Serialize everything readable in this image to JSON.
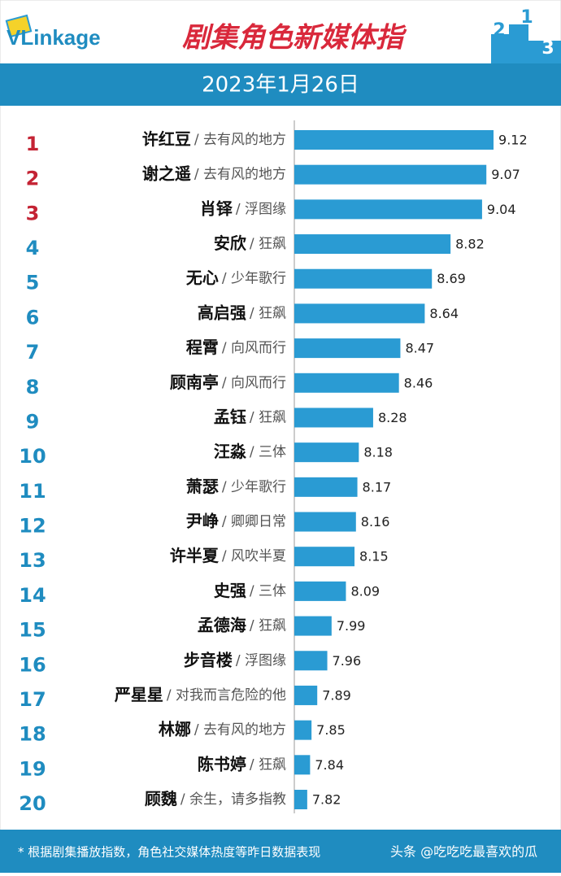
{
  "brand": "VLinkage",
  "podium": [
    "2",
    "1",
    "3"
  ],
  "chart_data": {
    "type": "bar",
    "orientation": "horizontal",
    "title": "剧集角色新媒体指",
    "subtitle": "2023年1月26日",
    "ranks": [
      "1",
      "2",
      "3",
      "4",
      "5",
      "6",
      "7",
      "8",
      "9",
      "10",
      "11",
      "12",
      "13",
      "14",
      "15",
      "16",
      "17",
      "18",
      "19",
      "20"
    ],
    "categories": [
      "许红豆",
      "谢之遥",
      "肖铎",
      "安欣",
      "无心",
      "高启强",
      "程霄",
      "顾南亭",
      "孟钰",
      "汪淼",
      "萧瑟",
      "尹峥",
      "许半夏",
      "史强",
      "孟德海",
      "步音楼",
      "严星星",
      "林娜",
      "陈书婷",
      "顾魏"
    ],
    "shows": [
      "/ 去有风的地方",
      "/ 去有风的地方",
      "/ 浮图缘",
      "/ 狂飙",
      "/ 少年歌行",
      "/ 狂飙",
      "/ 向风而行",
      "/ 向风而行",
      "/ 狂飙",
      "/ 三体",
      "/ 少年歌行",
      "/ 卿卿日常",
      "/ 风吹半夏",
      "/ 三体",
      "/ 狂飙",
      "/ 浮图缘",
      "/ 对我而言危险的他",
      "/ 去有风的地方",
      "/ 狂飙",
      "/ 余生，请多指教"
    ],
    "values": [
      9.12,
      9.07,
      9.04,
      8.82,
      8.69,
      8.64,
      8.47,
      8.46,
      8.28,
      8.18,
      8.17,
      8.16,
      8.15,
      8.09,
      7.99,
      7.96,
      7.89,
      7.85,
      7.84,
      7.82
    ],
    "xlim": [
      7.73,
      9.5
    ],
    "color": "#2a9bd3",
    "top_rank_color": "#c42334",
    "rank_color": "#1f8cc0",
    "top_count": 3,
    "footnote": "* 根据剧集播放指数，角色社交媒体热度等昨日数据表现",
    "watermark": "头条 @吃吃吃最喜欢的瓜"
  }
}
